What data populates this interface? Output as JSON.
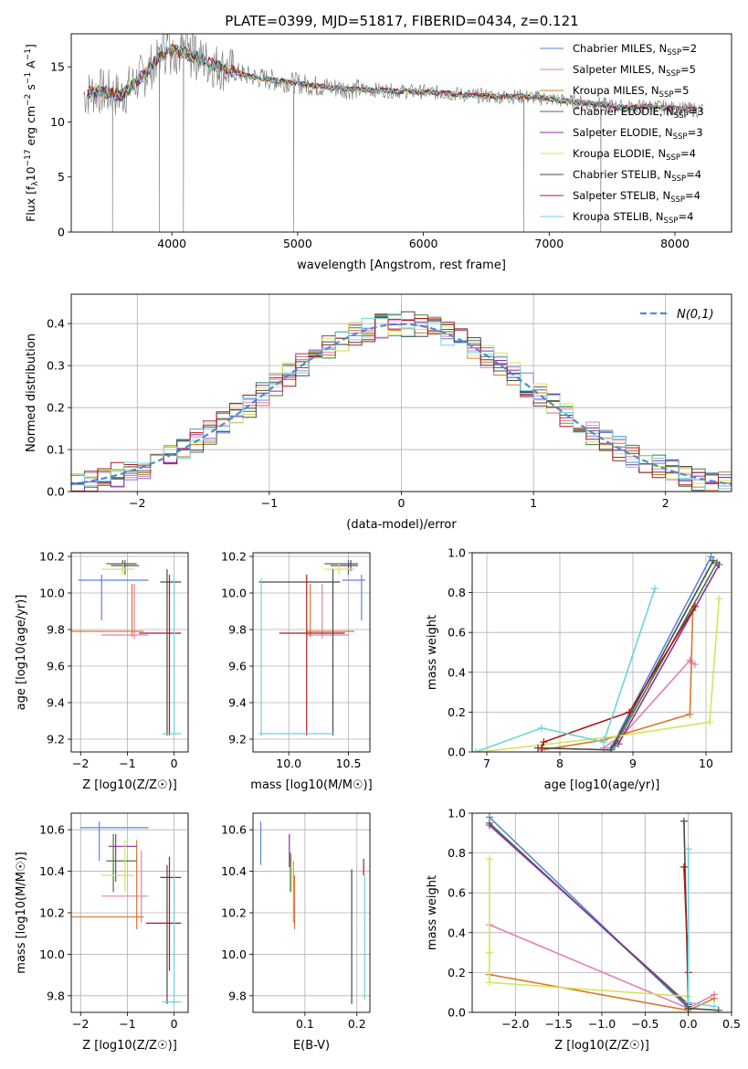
{
  "title": "PLATE=0399, MJD=51817, FIBERID=0434, z=0.121",
  "colors": {
    "Chabrier MILES": "#5b84d9",
    "Salpeter MILES": "#e27fb8",
    "Kroupa MILES": "#d9772b",
    "Chabrier ELODIE": "#3f7a3f",
    "Salpeter ELODIE": "#8f2e9e",
    "Kroupa ELODIE": "#d2e65a",
    "Chabrier STELIB": "#4a4a4a",
    "Salpeter STELIB": "#a81c1c",
    "Kroupa STELIB": "#6ed4dd",
    "normal": "#5588d0",
    "grid": "#b0b0b0"
  },
  "chart_data": [
    {
      "id": "spectrum",
      "type": "line",
      "title": "PLATE=0399, MJD=51817, FIBERID=0434, z=0.121",
      "xlabel": "wavelength [Angstrom, rest frame]",
      "ylabel": "Flux [f_λ 10^-17 erg cm^-2 s^-1 A^-1]",
      "xlim": [
        3200,
        8450
      ],
      "ylim": [
        0,
        18
      ],
      "xticks": [
        4000,
        5000,
        6000,
        7000,
        8000
      ],
      "yticks": [
        0,
        5,
        10,
        15
      ],
      "grid": false,
      "legend_position": "top-right",
      "legend": [
        {
          "name": "Chabrier MILES",
          "nssp": "2"
        },
        {
          "name": "Salpeter MILES",
          "nssp": "5"
        },
        {
          "name": "Kroupa MILES",
          "nssp": "5"
        },
        {
          "name": "Chabrier ELODIE",
          "nssp": "3"
        },
        {
          "name": "Salpeter ELODIE",
          "nssp": "3"
        },
        {
          "name": "Kroupa ELODIE",
          "nssp": "4"
        },
        {
          "name": "Chabrier STELIB",
          "nssp": "4"
        },
        {
          "name": "Salpeter STELIB",
          "nssp": "4"
        },
        {
          "name": "Kroupa STELIB",
          "nssp": "4"
        }
      ],
      "data_envelope": {
        "x": [
          3300,
          3400,
          3500,
          3600,
          3700,
          3800,
          3900,
          4000,
          4100,
          4200,
          4400,
          4600,
          4800,
          5000,
          5200,
          5400,
          5600,
          5800,
          6000,
          6200,
          6400,
          6600,
          6800,
          7000,
          7200,
          7400,
          7600,
          7800,
          8000,
          8200
        ],
        "y": [
          12.5,
          12.8,
          12.6,
          12.4,
          13.5,
          14.5,
          16.0,
          16.5,
          16.2,
          15.8,
          14.9,
          14.2,
          13.8,
          13.5,
          13.2,
          13.0,
          12.9,
          12.8,
          12.7,
          12.6,
          12.4,
          12.3,
          12.3,
          12.1,
          11.8,
          11.6,
          11.3,
          11.4,
          11.2,
          11.1
        ]
      },
      "spikes_to_zero": [
        3530,
        3900,
        4090,
        4970,
        6800,
        7410
      ]
    },
    {
      "id": "residuals",
      "type": "step",
      "xlabel": "(data-model)/error",
      "ylabel": "Normed distribution",
      "xlim": [
        -2.5,
        2.5
      ],
      "ylim": [
        0,
        0.47
      ],
      "xticks": [
        -2,
        -1,
        0,
        1,
        2
      ],
      "xtick_labels": [
        "−2",
        "−1",
        "0",
        "1",
        "2"
      ],
      "yticks": [
        0.0,
        0.1,
        0.2,
        0.3,
        0.4
      ],
      "grid": true,
      "legend_position": "top-right",
      "normal_label": "N(0,1)",
      "bins_x": [
        -2.5,
        -2.4,
        -2.3,
        -2.2,
        -2.1,
        -2.0,
        -1.9,
        -1.8,
        -1.7,
        -1.6,
        -1.5,
        -1.4,
        -1.3,
        -1.2,
        -1.1,
        -1.0,
        -0.9,
        -0.8,
        -0.7,
        -0.6,
        -0.5,
        -0.4,
        -0.3,
        -0.2,
        -0.1,
        0.0,
        0.1,
        0.2,
        0.3,
        0.4,
        0.5,
        0.6,
        0.7,
        0.8,
        0.9,
        1.0,
        1.1,
        1.2,
        1.3,
        1.4,
        1.5,
        1.6,
        1.7,
        1.8,
        1.9,
        2.0,
        2.1,
        2.2,
        2.3,
        2.4
      ]
    },
    {
      "id": "age_vs_Z",
      "type": "errorbar",
      "xlabel": "Z [log10(Z/Z☉)]",
      "ylabel": "age [log10(age/yr)]",
      "xlim": [
        -2.2,
        0.3
      ],
      "ylim": [
        9.13,
        10.22
      ],
      "xticks": [
        -2,
        -1,
        0
      ],
      "xtick_labels": [
        "−2",
        "−1",
        "0"
      ],
      "yticks": [
        9.2,
        9.4,
        9.6,
        9.8,
        10.0,
        10.2
      ],
      "points": [
        {
          "m": "Chabrier MILES",
          "x": -1.55,
          "xe": [
            -2.05,
            -0.55
          ],
          "y": 10.07,
          "ye": [
            9.85,
            10.1
          ]
        },
        {
          "m": "Salpeter MILES",
          "x": -0.85,
          "xe": [
            -1.55,
            -0.55
          ],
          "y": 9.77,
          "ye": [
            9.75,
            10.05
          ]
        },
        {
          "m": "Kroupa MILES",
          "x": -0.9,
          "xe": [
            -2.2,
            -0.65
          ],
          "y": 9.79,
          "ye": [
            9.76,
            10.05
          ]
        },
        {
          "m": "Chabrier ELODIE",
          "x": -1.05,
          "xe": [
            -1.45,
            -0.8
          ],
          "y": 10.16,
          "ye": [
            10.1,
            10.18
          ]
        },
        {
          "m": "Salpeter ELODIE",
          "x": -1.1,
          "xe": [
            -1.35,
            -0.75
          ],
          "y": 10.15,
          "ye": [
            10.12,
            10.18
          ]
        },
        {
          "m": "Kroupa ELODIE",
          "x": -1.1,
          "xe": [
            -1.55,
            -0.85
          ],
          "y": 10.13,
          "ye": [
            10.1,
            10.16
          ]
        },
        {
          "m": "Chabrier STELIB",
          "x": -0.15,
          "xe": [
            -0.3,
            0.15
          ],
          "y": 10.06,
          "ye": [
            9.22,
            10.13
          ]
        },
        {
          "m": "Salpeter STELIB",
          "x": -0.1,
          "xe": [
            -0.75,
            0.15
          ],
          "y": 9.78,
          "ye": [
            9.22,
            10.1
          ]
        },
        {
          "m": "Kroupa STELIB",
          "x": 0.0,
          "xe": [
            -0.25,
            0.15
          ],
          "y": 9.23,
          "ye": [
            9.22,
            10.08
          ]
        }
      ]
    },
    {
      "id": "age_vs_mass",
      "type": "errorbar",
      "xlabel": "mass [log10(M/M☉)]",
      "ylabel": "",
      "xlim": [
        9.7,
        10.68
      ],
      "ylim": [
        9.13,
        10.22
      ],
      "xticks": [
        10.0,
        10.5
      ],
      "xtick_labels": [
        "10.0",
        "10.5"
      ],
      "yticks": [
        9.2,
        9.4,
        9.6,
        9.8,
        10.0,
        10.2
      ],
      "points": [
        {
          "m": "Chabrier MILES",
          "x": 10.61,
          "xe": [
            10.45,
            10.64
          ],
          "y": 10.07,
          "ye": [
            9.85,
            10.1
          ]
        },
        {
          "m": "Salpeter MILES",
          "x": 10.28,
          "xe": [
            10.15,
            10.5
          ],
          "y": 9.77,
          "ye": [
            9.75,
            10.05
          ]
        },
        {
          "m": "Kroupa MILES",
          "x": 10.18,
          "xe": [
            10.15,
            10.55
          ],
          "y": 9.79,
          "ye": [
            9.76,
            10.05
          ]
        },
        {
          "m": "Chabrier ELODIE",
          "x": 10.5,
          "xe": [
            10.3,
            10.58
          ],
          "y": 10.16,
          "ye": [
            10.1,
            10.18
          ]
        },
        {
          "m": "Salpeter ELODIE",
          "x": 10.52,
          "xe": [
            10.35,
            10.58
          ],
          "y": 10.15,
          "ye": [
            10.12,
            10.18
          ]
        },
        {
          "m": "Kroupa ELODIE",
          "x": 10.42,
          "xe": [
            10.3,
            10.55
          ],
          "y": 10.13,
          "ye": [
            10.1,
            10.16
          ]
        },
        {
          "m": "Chabrier STELIB",
          "x": 10.37,
          "xe": [
            9.75,
            10.43
          ],
          "y": 10.06,
          "ye": [
            9.22,
            10.13
          ]
        },
        {
          "m": "Salpeter STELIB",
          "x": 10.15,
          "xe": [
            9.92,
            10.47
          ],
          "y": 9.78,
          "ye": [
            9.22,
            10.1
          ]
        },
        {
          "m": "Kroupa STELIB",
          "x": 9.77,
          "xe": [
            9.75,
            10.38
          ],
          "y": 9.23,
          "ye": [
            9.22,
            10.08
          ]
        }
      ]
    },
    {
      "id": "weight_vs_age",
      "type": "line",
      "xlabel": "age [log10(age/yr)]",
      "ylabel": "mass weight",
      "xlim": [
        6.8,
        10.35
      ],
      "ylim": [
        0,
        1
      ],
      "xticks": [
        7,
        8,
        9,
        10
      ],
      "xtick_labels": [
        "7",
        "8",
        "9",
        "10"
      ],
      "yticks": [
        0.0,
        0.2,
        0.4,
        0.6,
        0.8,
        1.0
      ],
      "grid": true,
      "series": [
        {
          "m": "Chabrier MILES",
          "x": [
            8.7,
            10.07
          ],
          "y": [
            0.02,
            0.98
          ]
        },
        {
          "m": "Salpeter MILES",
          "x": [
            8.6,
            8.9,
            9.78,
            9.85
          ],
          "y": [
            0.02,
            0.1,
            0.46,
            0.44
          ]
        },
        {
          "m": "Kroupa MILES",
          "x": [
            7.75,
            8.6,
            9.78,
            9.82
          ],
          "y": [
            0.01,
            0.06,
            0.19,
            0.71
          ]
        },
        {
          "m": "Chabrier ELODIE",
          "x": [
            8.75,
            10.15
          ],
          "y": [
            0.03,
            0.95
          ]
        },
        {
          "m": "Salpeter ELODIE",
          "x": [
            8.8,
            10.18
          ],
          "y": [
            0.04,
            0.94
          ]
        },
        {
          "m": "Kroupa ELODIE",
          "x": [
            6.9,
            8.8,
            10.05,
            10.18
          ],
          "y": [
            0.0,
            0.08,
            0.15,
            0.77
          ]
        },
        {
          "m": "Chabrier STELIB",
          "x": [
            7.7,
            8.7,
            10.1
          ],
          "y": [
            0.02,
            0.01,
            0.96
          ]
        },
        {
          "m": "Salpeter STELIB",
          "x": [
            7.75,
            7.78,
            8.95,
            9.85
          ],
          "y": [
            0.02,
            0.05,
            0.2,
            0.73
          ]
        },
        {
          "m": "Kroupa STELIB",
          "x": [
            6.85,
            7.75,
            8.6,
            9.3
          ],
          "y": [
            0.0,
            0.12,
            0.05,
            0.82
          ]
        }
      ]
    },
    {
      "id": "mass_vs_Z",
      "type": "errorbar",
      "xlabel": "Z [log10(Z/Z☉)]",
      "ylabel": "mass [log10(M/M☉)]",
      "xlim": [
        -2.2,
        0.3
      ],
      "ylim": [
        9.72,
        10.68
      ],
      "xticks": [
        -2,
        -1,
        0
      ],
      "xtick_labels": [
        "−2",
        "−1",
        "0"
      ],
      "yticks": [
        9.8,
        10.0,
        10.2,
        10.4,
        10.6
      ],
      "points": [
        {
          "m": "Chabrier MILES",
          "x": -1.6,
          "xe": [
            -2.0,
            -0.55
          ],
          "y": 10.61,
          "ye": [
            10.45,
            10.64
          ]
        },
        {
          "m": "Salpeter MILES",
          "x": -0.7,
          "xe": [
            -1.55,
            -0.55
          ],
          "y": 10.28,
          "ye": [
            10.15,
            10.5
          ]
        },
        {
          "m": "Kroupa MILES",
          "x": -0.8,
          "xe": [
            -2.2,
            -0.65
          ],
          "y": 10.18,
          "ye": [
            10.12,
            10.55
          ]
        },
        {
          "m": "Chabrier ELODIE",
          "x": -1.3,
          "xe": [
            -1.45,
            -0.8
          ],
          "y": 10.45,
          "ye": [
            10.3,
            10.58
          ]
        },
        {
          "m": "Salpeter ELODIE",
          "x": -1.25,
          "xe": [
            -1.4,
            -0.8
          ],
          "y": 10.52,
          "ye": [
            10.35,
            10.58
          ]
        },
        {
          "m": "Kroupa ELODIE",
          "x": -1.05,
          "xe": [
            -1.55,
            -0.85
          ],
          "y": 10.38,
          "ye": [
            10.3,
            10.55
          ]
        },
        {
          "m": "Chabrier STELIB",
          "x": -0.15,
          "xe": [
            -0.3,
            0.15
          ],
          "y": 10.37,
          "ye": [
            9.76,
            10.43
          ]
        },
        {
          "m": "Salpeter STELIB",
          "x": -0.1,
          "xe": [
            -0.6,
            0.15
          ],
          "y": 10.15,
          "ye": [
            9.92,
            10.47
          ]
        },
        {
          "m": "Kroupa STELIB",
          "x": 0.0,
          "xe": [
            -0.25,
            0.15
          ],
          "y": 9.77,
          "ye": [
            9.76,
            10.38
          ]
        }
      ]
    },
    {
      "id": "mass_vs_ebv",
      "type": "errorbar",
      "xlabel": "E(B-V)",
      "ylabel": "",
      "xlim": [
        0.0,
        0.225
      ],
      "ylim": [
        9.72,
        10.68
      ],
      "xticks": [
        0.1,
        0.2
      ],
      "xtick_labels": [
        "0.1",
        "0.2"
      ],
      "yticks": [
        9.8,
        10.0,
        10.2,
        10.4,
        10.6
      ],
      "points": [
        {
          "m": "Chabrier MILES",
          "x": 0.015,
          "xe": [
            0.015,
            0.015
          ],
          "y": 10.55,
          "ye": [
            10.43,
            10.64
          ]
        },
        {
          "m": "Salpeter MILES",
          "x": 0.078,
          "xe": [
            0.078,
            0.078
          ],
          "y": 10.3,
          "ye": [
            10.15,
            10.45
          ]
        },
        {
          "m": "Kroupa MILES",
          "x": 0.08,
          "xe": [
            0.08,
            0.08
          ],
          "y": 10.2,
          "ye": [
            10.12,
            10.38
          ]
        },
        {
          "m": "Chabrier ELODIE",
          "x": 0.072,
          "xe": [
            0.072,
            0.072
          ],
          "y": 10.4,
          "ye": [
            10.3,
            10.49
          ]
        },
        {
          "m": "Salpeter ELODIE",
          "x": 0.07,
          "xe": [
            0.07,
            0.07
          ],
          "y": 10.5,
          "ye": [
            10.42,
            10.58
          ]
        },
        {
          "m": "Kroupa ELODIE",
          "x": 0.074,
          "xe": [
            0.074,
            0.074
          ],
          "y": 10.4,
          "ye": [
            10.3,
            10.48
          ]
        },
        {
          "m": "Chabrier STELIB",
          "x": 0.19,
          "xe": [
            0.19,
            0.19
          ],
          "y": 10.1,
          "ye": [
            9.76,
            10.41
          ]
        },
        {
          "m": "Salpeter STELIB",
          "x": 0.213,
          "xe": [
            0.213,
            0.213
          ],
          "y": 10.4,
          "ye": [
            10.38,
            10.46
          ]
        },
        {
          "m": "Kroupa STELIB",
          "x": 0.215,
          "xe": [
            0.215,
            0.215
          ],
          "y": 10.0,
          "ye": [
            9.78,
            10.38
          ]
        }
      ]
    },
    {
      "id": "weight_vs_Z",
      "type": "line",
      "xlabel": "Z [log10(Z/Z☉)]",
      "ylabel": "mass weight",
      "xlim": [
        -2.5,
        0.5
      ],
      "ylim": [
        0,
        1
      ],
      "xticks": [
        -2.0,
        -1.5,
        -1.0,
        -0.5,
        0.0,
        0.5
      ],
      "xtick_labels": [
        "−2.0",
        "−1.5",
        "−1.0",
        "−0.5",
        "0.0",
        "0.5"
      ],
      "yticks": [
        0.0,
        0.2,
        0.4,
        0.6,
        0.8,
        1.0
      ],
      "grid": true,
      "series": [
        {
          "m": "Chabrier MILES",
          "x": [
            -2.3,
            0.0
          ],
          "y": [
            0.98,
            0.02
          ]
        },
        {
          "m": "Salpeter MILES",
          "x": [
            -2.3,
            0.0,
            0.3
          ],
          "y": [
            0.44,
            0.02,
            0.09
          ]
        },
        {
          "m": "Kroupa MILES",
          "x": [
            -2.3,
            0.0,
            0.3
          ],
          "y": [
            0.19,
            0.01,
            0.07
          ]
        },
        {
          "m": "Chabrier ELODIE",
          "x": [
            -2.3,
            0.0
          ],
          "y": [
            0.95,
            0.03
          ]
        },
        {
          "m": "Salpeter ELODIE",
          "x": [
            -2.3,
            0.0
          ],
          "y": [
            0.94,
            0.04
          ]
        },
        {
          "m": "Kroupa ELODIE",
          "x": [
            -2.3,
            -2.3,
            -2.3,
            0.0
          ],
          "y": [
            0.77,
            0.3,
            0.15,
            0.08
          ]
        },
        {
          "m": "Chabrier STELIB",
          "x": [
            -0.05,
            0.0,
            0.35
          ],
          "y": [
            0.96,
            0.02,
            0.01
          ]
        },
        {
          "m": "Salpeter STELIB",
          "x": [
            -0.05,
            0.0
          ],
          "y": [
            0.73,
            0.2
          ]
        },
        {
          "m": "Kroupa STELIB",
          "x": [
            0.0,
            0.0,
            0.3
          ],
          "y": [
            0.82,
            0.05,
            0.03
          ]
        }
      ]
    }
  ]
}
